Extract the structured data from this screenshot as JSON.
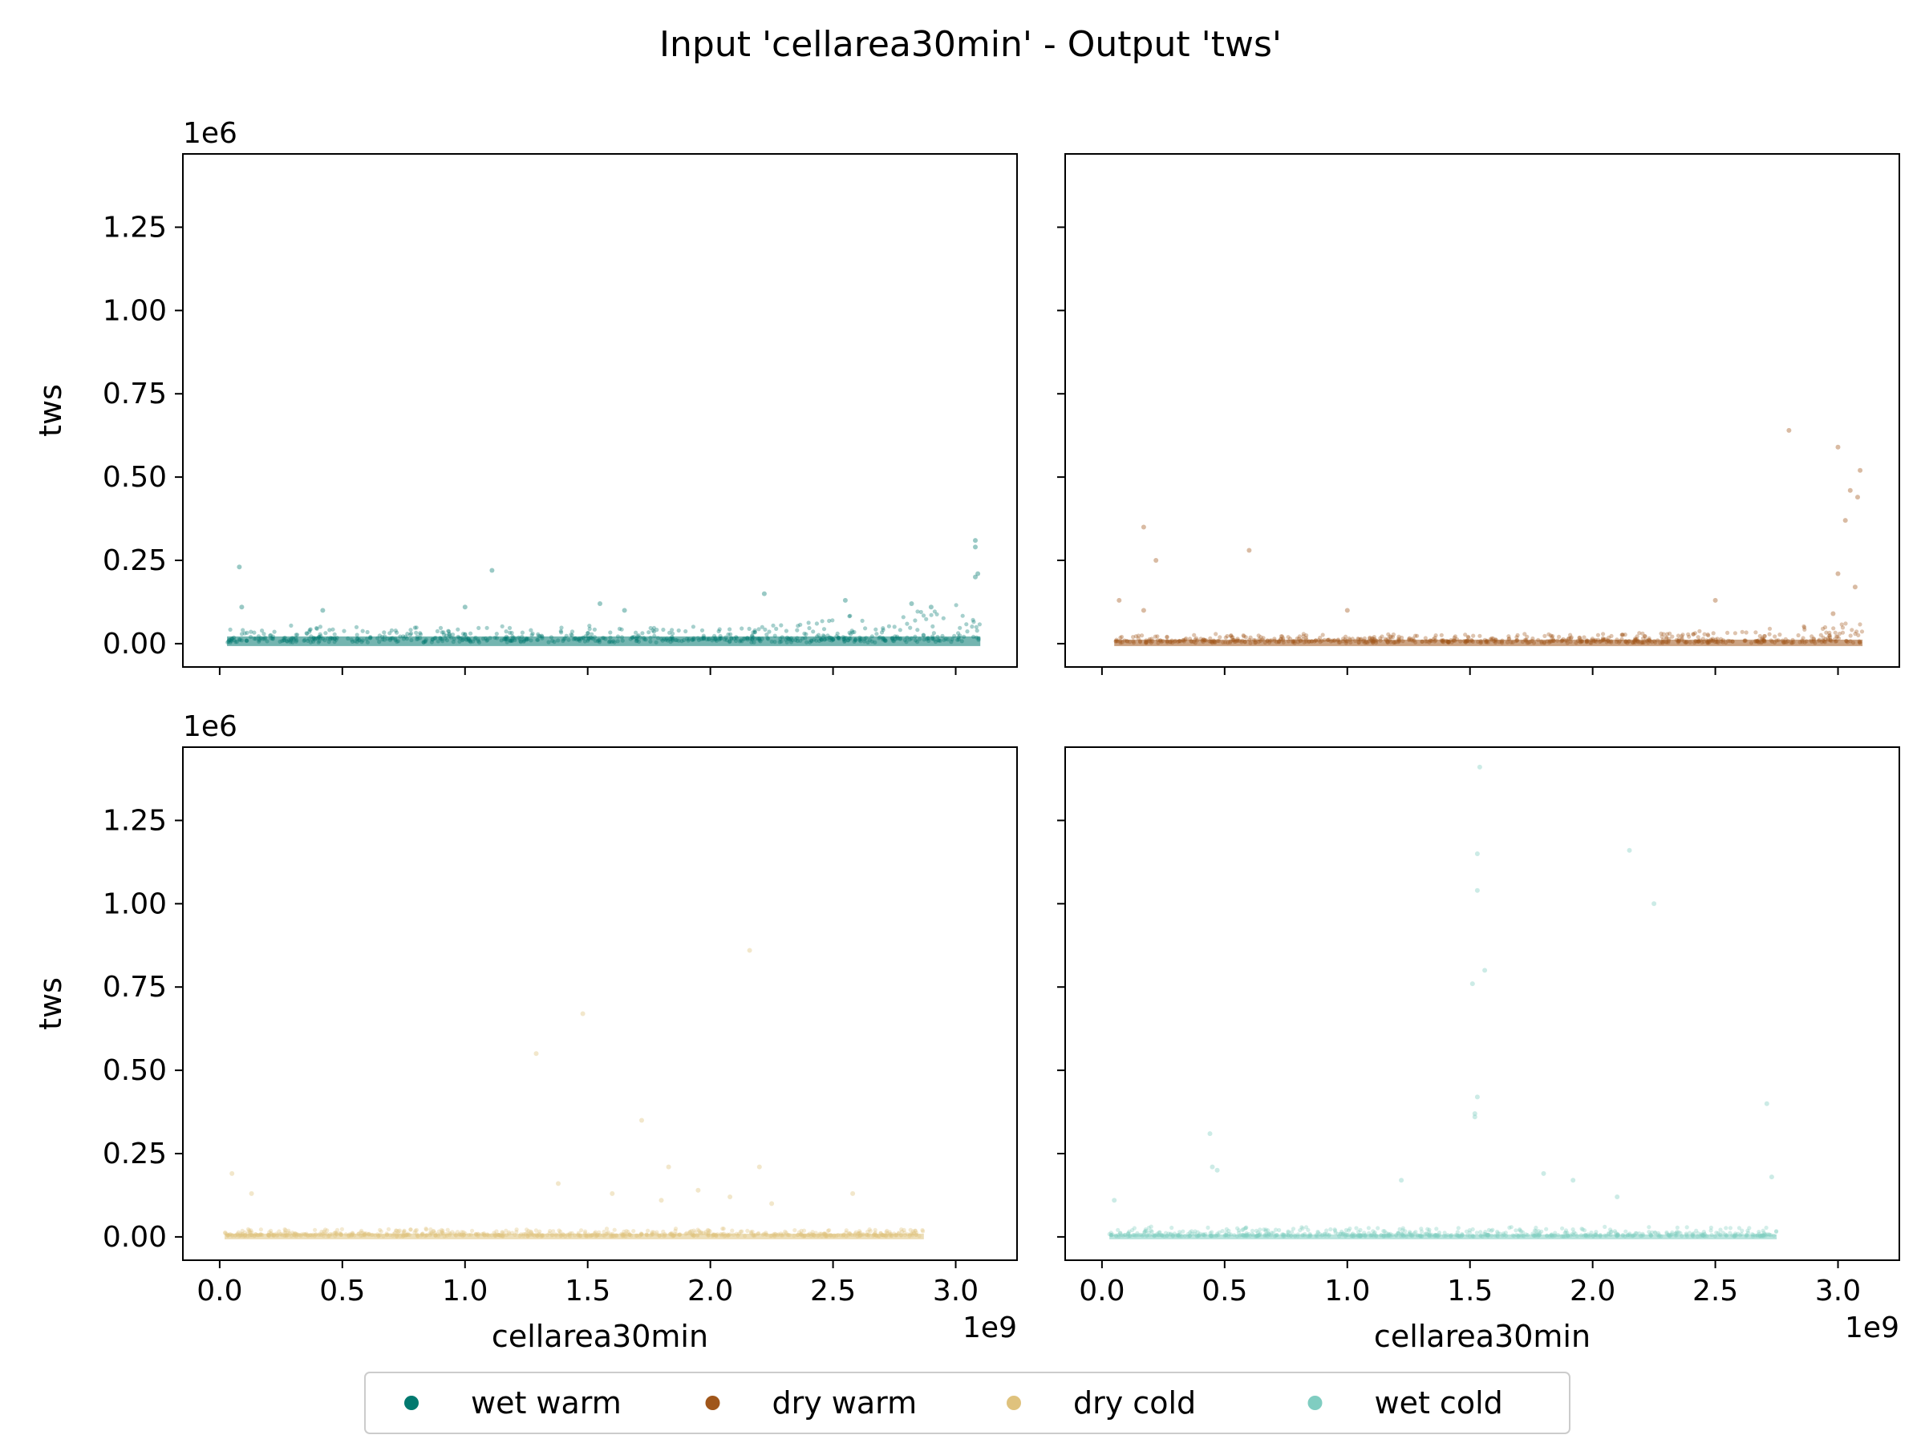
{
  "chart_data": {
    "type": "scatter",
    "title": "Input 'cellarea30min' - Output 'tws'",
    "xlabel": "cellarea30min",
    "ylabel": "tws",
    "x_offset_text": "1e9",
    "y_offset_text": "1e6",
    "xlim": [
      -0.15,
      3.25
    ],
    "ylim": [
      -0.07,
      1.47
    ],
    "x_ticks": [
      0.0,
      0.5,
      1.0,
      1.5,
      2.0,
      2.5,
      3.0
    ],
    "x_tick_labels": [
      "0.0",
      "0.5",
      "1.0",
      "1.5",
      "2.0",
      "2.5",
      "3.0"
    ],
    "y_ticks": [
      0.0,
      0.25,
      0.5,
      0.75,
      1.0,
      1.25
    ],
    "y_tick_labels": [
      "0.00",
      "0.25",
      "0.50",
      "0.75",
      "1.00",
      "1.25"
    ],
    "legend": {
      "placement": "bottom-center",
      "entries": [
        {
          "label": "wet warm",
          "color": "#01796f"
        },
        {
          "label": "dry warm",
          "color": "#a0561a"
        },
        {
          "label": "dry cold",
          "color": "#dfc27d"
        },
        {
          "label": "wet cold",
          "color": "#80cdc1"
        }
      ]
    },
    "panels": [
      {
        "series": "wet warm",
        "color": "#01796f",
        "x_range": [
          0.03,
          3.1
        ],
        "base_level": 0.018,
        "spread": 0.04,
        "outliers": [
          {
            "x": 0.08,
            "y": 0.23
          },
          {
            "x": 1.11,
            "y": 0.22
          },
          {
            "x": 3.08,
            "y": 0.31
          },
          {
            "x": 3.08,
            "y": 0.29
          },
          {
            "x": 3.09,
            "y": 0.21
          },
          {
            "x": 3.08,
            "y": 0.2
          },
          {
            "x": 2.22,
            "y": 0.15
          },
          {
            "x": 2.55,
            "y": 0.13
          },
          {
            "x": 0.09,
            "y": 0.11
          },
          {
            "x": 0.42,
            "y": 0.1
          },
          {
            "x": 1.0,
            "y": 0.11
          },
          {
            "x": 1.55,
            "y": 0.12
          },
          {
            "x": 1.65,
            "y": 0.1
          },
          {
            "x": 2.82,
            "y": 0.12
          },
          {
            "x": 2.9,
            "y": 0.11
          }
        ]
      },
      {
        "series": "dry warm",
        "color": "#a0561a",
        "x_range": [
          0.05,
          3.1
        ],
        "base_level": 0.01,
        "spread": 0.02,
        "outliers": [
          {
            "x": 2.8,
            "y": 0.64
          },
          {
            "x": 3.0,
            "y": 0.59
          },
          {
            "x": 3.09,
            "y": 0.52
          },
          {
            "x": 3.05,
            "y": 0.46
          },
          {
            "x": 3.08,
            "y": 0.44
          },
          {
            "x": 3.03,
            "y": 0.37
          },
          {
            "x": 0.17,
            "y": 0.35
          },
          {
            "x": 0.6,
            "y": 0.28
          },
          {
            "x": 0.22,
            "y": 0.25
          },
          {
            "x": 3.0,
            "y": 0.21
          },
          {
            "x": 3.07,
            "y": 0.17
          },
          {
            "x": 0.07,
            "y": 0.13
          },
          {
            "x": 2.5,
            "y": 0.13
          },
          {
            "x": 2.98,
            "y": 0.09
          },
          {
            "x": 1.0,
            "y": 0.1
          },
          {
            "x": 0.17,
            "y": 0.1
          }
        ]
      },
      {
        "series": "dry cold",
        "color": "#dfc27d",
        "x_range": [
          0.02,
          2.87
        ],
        "base_level": 0.008,
        "spread": 0.018,
        "outliers": [
          {
            "x": 2.16,
            "y": 0.86
          },
          {
            "x": 1.48,
            "y": 0.67
          },
          {
            "x": 1.29,
            "y": 0.55
          },
          {
            "x": 1.72,
            "y": 0.35
          },
          {
            "x": 1.83,
            "y": 0.21
          },
          {
            "x": 2.2,
            "y": 0.21
          },
          {
            "x": 0.05,
            "y": 0.19
          },
          {
            "x": 1.38,
            "y": 0.16
          },
          {
            "x": 0.13,
            "y": 0.13
          },
          {
            "x": 1.6,
            "y": 0.13
          },
          {
            "x": 1.95,
            "y": 0.14
          },
          {
            "x": 2.08,
            "y": 0.12
          },
          {
            "x": 2.58,
            "y": 0.13
          },
          {
            "x": 1.8,
            "y": 0.11
          },
          {
            "x": 2.25,
            "y": 0.1
          }
        ]
      },
      {
        "series": "wet cold",
        "color": "#80cdc1",
        "x_range": [
          0.03,
          2.75
        ],
        "base_level": 0.006,
        "spread": 0.025,
        "outliers": [
          {
            "x": 1.54,
            "y": 1.41
          },
          {
            "x": 2.15,
            "y": 1.16
          },
          {
            "x": 1.53,
            "y": 1.15
          },
          {
            "x": 1.53,
            "y": 1.04
          },
          {
            "x": 2.25,
            "y": 1.0
          },
          {
            "x": 1.56,
            "y": 0.8
          },
          {
            "x": 1.51,
            "y": 0.76
          },
          {
            "x": 1.53,
            "y": 0.42
          },
          {
            "x": 2.71,
            "y": 0.4
          },
          {
            "x": 1.52,
            "y": 0.37
          },
          {
            "x": 1.52,
            "y": 0.36
          },
          {
            "x": 0.44,
            "y": 0.31
          },
          {
            "x": 0.45,
            "y": 0.21
          },
          {
            "x": 0.47,
            "y": 0.2
          },
          {
            "x": 1.8,
            "y": 0.19
          },
          {
            "x": 1.22,
            "y": 0.17
          },
          {
            "x": 2.73,
            "y": 0.18
          },
          {
            "x": 0.05,
            "y": 0.11
          },
          {
            "x": 2.1,
            "y": 0.12
          },
          {
            "x": 1.92,
            "y": 0.17
          }
        ]
      }
    ]
  }
}
